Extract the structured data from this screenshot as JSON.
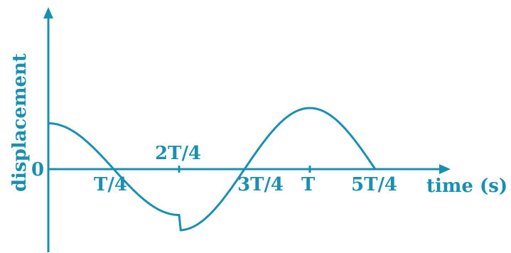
{
  "chart_data": {
    "type": "line",
    "xlabel": "time (s)",
    "ylabel": "displacement",
    "origin_label": "0",
    "xlim": [
      0,
      1.35
    ],
    "ylim": [
      -1.2,
      1.6
    ],
    "x_ticks": [
      {
        "value": 0.25,
        "label": "T/4"
      },
      {
        "value": 0.5,
        "label": "2T/4"
      },
      {
        "value": 0.75,
        "label": "3T/4"
      },
      {
        "value": 1.0,
        "label": "T"
      },
      {
        "value": 1.25,
        "label": "5T/4"
      }
    ],
    "x_unit": "T",
    "amplitude_left": 0.75,
    "amplitude_right": 1.0,
    "color": "#1a8fb0",
    "grid": false,
    "series": [
      {
        "x": [
          0,
          0.0625,
          0.125,
          0.1875,
          0.25,
          0.3125,
          0.375,
          0.4375,
          0.5,
          0.5625,
          0.625,
          0.6875,
          0.75,
          0.8125,
          0.875,
          0.9375,
          1.0,
          1.0625,
          1.125,
          1.1875,
          1.25
        ],
        "values": [
          0.75,
          0.69,
          0.53,
          0.29,
          0,
          -0.35,
          -0.66,
          -0.9,
          -1.0,
          -0.9,
          -0.66,
          -0.35,
          0,
          0.38,
          0.71,
          0.92,
          1.0,
          0.92,
          0.71,
          0.38,
          0
        ]
      }
    ]
  }
}
